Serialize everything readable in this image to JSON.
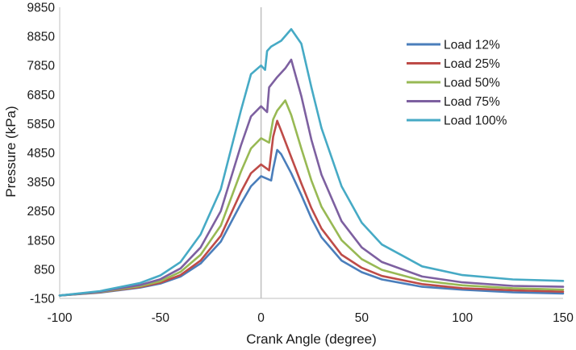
{
  "chart_data": {
    "type": "line",
    "title": "",
    "xlabel": "Crank Angle (degree)",
    "ylabel": "Pressure (kPa)",
    "xlim": [
      -100,
      150
    ],
    "ylim": [
      -150,
      9850
    ],
    "x_ticks": [
      "-100",
      "-50",
      "0",
      "50",
      "100",
      "150"
    ],
    "y_ticks": [
      "-150",
      "850",
      "1850",
      "2850",
      "3850",
      "4850",
      "5850",
      "6850",
      "7850",
      "8850",
      "9850"
    ],
    "grid": false,
    "vertical_reference_line_x": 0,
    "legend_position": "top-right",
    "series": [
      {
        "name": "Load 12%",
        "color": "#4a7ebb",
        "x": [
          -100,
          -80,
          -60,
          -50,
          -40,
          -30,
          -20,
          -10,
          -5,
          0,
          5,
          6,
          8,
          10,
          15,
          20,
          25,
          30,
          40,
          50,
          60,
          80,
          100,
          125,
          150
        ],
        "y": [
          -50,
          50,
          220,
          360,
          600,
          1050,
          1800,
          3100,
          3700,
          4050,
          3900,
          4300,
          4950,
          4800,
          4150,
          3400,
          2600,
          1950,
          1150,
          750,
          500,
          250,
          150,
          60,
          20
        ]
      },
      {
        "name": "Load 25%",
        "color": "#be4b48",
        "x": [
          -100,
          -80,
          -60,
          -50,
          -40,
          -30,
          -20,
          -10,
          -5,
          0,
          4,
          6,
          8,
          10,
          15,
          20,
          25,
          30,
          40,
          50,
          60,
          80,
          100,
          125,
          150
        ],
        "y": [
          -50,
          60,
          240,
          390,
          650,
          1150,
          2000,
          3500,
          4150,
          4450,
          4250,
          5400,
          5950,
          5600,
          4700,
          3800,
          2950,
          2250,
          1350,
          900,
          620,
          340,
          200,
          130,
          80
        ]
      },
      {
        "name": "Load 50%",
        "color": "#98b954",
        "x": [
          -100,
          -80,
          -60,
          -50,
          -40,
          -30,
          -20,
          -10,
          -5,
          0,
          4,
          6,
          8,
          12,
          15,
          20,
          25,
          30,
          40,
          50,
          60,
          80,
          100,
          125,
          150
        ],
        "y": [
          -50,
          70,
          270,
          440,
          760,
          1350,
          2350,
          4200,
          5000,
          5350,
          5200,
          6000,
          6300,
          6650,
          6150,
          5000,
          3900,
          3000,
          1850,
          1200,
          830,
          460,
          300,
          200,
          150
        ]
      },
      {
        "name": "Load 75%",
        "color": "#7d60a0",
        "x": [
          -100,
          -80,
          -60,
          -50,
          -40,
          -30,
          -20,
          -10,
          -5,
          0,
          3,
          4,
          8,
          12,
          15,
          20,
          25,
          30,
          40,
          50,
          60,
          80,
          100,
          125,
          150
        ],
        "y": [
          -50,
          80,
          310,
          510,
          880,
          1600,
          2850,
          5100,
          6100,
          6450,
          6250,
          7100,
          7450,
          7750,
          8050,
          6800,
          5300,
          4100,
          2500,
          1600,
          1100,
          600,
          400,
          280,
          250
        ]
      },
      {
        "name": "Load 100%",
        "color": "#46aac5",
        "x": [
          -100,
          -80,
          -60,
          -50,
          -40,
          -30,
          -20,
          -10,
          -5,
          0,
          2,
          3,
          5,
          10,
          15,
          20,
          25,
          30,
          40,
          50,
          60,
          80,
          100,
          125,
          150
        ],
        "y": [
          -50,
          100,
          380,
          640,
          1100,
          2050,
          3600,
          6300,
          7550,
          7850,
          7700,
          8350,
          8500,
          8700,
          9100,
          8600,
          7100,
          5700,
          3700,
          2450,
          1700,
          950,
          650,
          500,
          450
        ]
      }
    ]
  }
}
